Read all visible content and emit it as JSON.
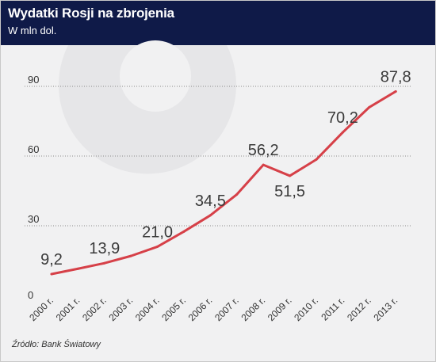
{
  "header": {
    "title": "Wydatki Rosji na zbrojenia",
    "subtitle": "W mln dol."
  },
  "footer": {
    "source": "Źródło: Bank Światowy"
  },
  "colors": {
    "header_bg": "#0f1a48",
    "line": "#d64048",
    "grid": "#8a8a8a",
    "text": "#333333"
  },
  "chart_data": {
    "type": "line",
    "title": "Wydatki Rosji na zbrojenia",
    "subtitle": "W mln dol.",
    "xlabel": "",
    "ylabel": "",
    "ylim": [
      0,
      90
    ],
    "yticks": [
      "0",
      "30",
      "60",
      "90"
    ],
    "grid": true,
    "categories": [
      "2000 r.",
      "2001 r.",
      "2002 r.",
      "2003 r.",
      "2004 r.",
      "2005 r.",
      "2006 r.",
      "2007 r.",
      "2008 r.",
      "2009 r.",
      "2010 r.",
      "2011 r.",
      "2012 r.",
      "2013 r."
    ],
    "values": [
      9.2,
      11.5,
      13.9,
      17.0,
      21.0,
      27.5,
      34.5,
      43.5,
      56.2,
      51.5,
      58.5,
      70.2,
      81.0,
      87.8
    ],
    "data_labels": [
      {
        "index": 0,
        "text": "9,2"
      },
      {
        "index": 2,
        "text": "13,9"
      },
      {
        "index": 4,
        "text": "21,0"
      },
      {
        "index": 6,
        "text": "34,5"
      },
      {
        "index": 8,
        "text": "56,2"
      },
      {
        "index": 9,
        "text": "51,5"
      },
      {
        "index": 11,
        "text": "70,2"
      },
      {
        "index": 13,
        "text": "87,8"
      }
    ]
  }
}
